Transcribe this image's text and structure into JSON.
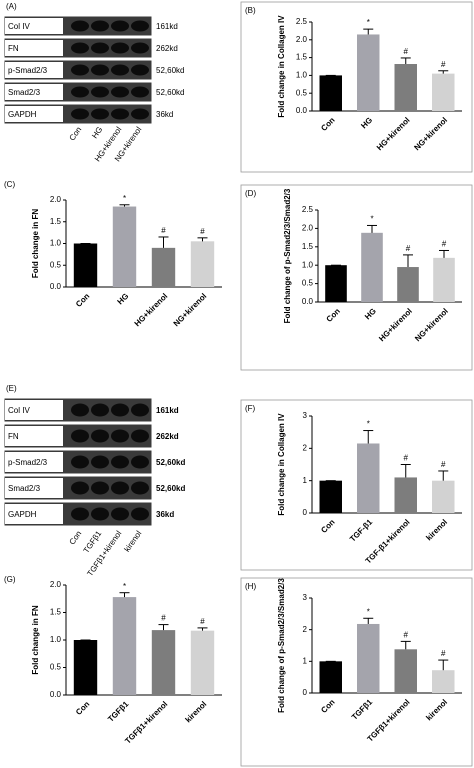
{
  "blots": [
    {
      "panel": "(A)",
      "rows": [
        {
          "protein": "Col IV",
          "size": "161kd"
        },
        {
          "protein": "FN",
          "size": "262kd"
        },
        {
          "protein": "p-Smad2/3",
          "size": "52,60kd"
        },
        {
          "protein": "Smad2/3",
          "size": "52,60kd"
        },
        {
          "protein": "GAPDH",
          "size": "36kd"
        }
      ],
      "lanes": [
        "Con",
        "HG",
        "HG+kirenol",
        "NG+kirenol"
      ]
    },
    {
      "panel": "(E)",
      "rows": [
        {
          "protein": "Col IV",
          "size": "161kd"
        },
        {
          "protein": "FN",
          "size": "262kd"
        },
        {
          "protein": "p-Smad2/3",
          "size": "52,60kd"
        },
        {
          "protein": "Smad2/3",
          "size": "52,60kd"
        },
        {
          "protein": "GAPDH",
          "size": "36kd"
        }
      ],
      "lanes": [
        "Con",
        "TGFβ1",
        "TGFβ1+kirenol",
        "kirenol"
      ]
    }
  ],
  "chart_data": [
    {
      "type": "bar",
      "panel": "(B)",
      "ylabel": "Fold change in Collagen IV",
      "categories": [
        "Con",
        "HG",
        "HG+kirenol",
        "NG+kirenol"
      ],
      "values": [
        1.0,
        2.15,
        1.32,
        1.05
      ],
      "errors": [
        0,
        0.15,
        0.17,
        0.08
      ],
      "annotations": [
        null,
        "*",
        "#",
        "#"
      ],
      "colors": [
        "#000000",
        "#a4a4ac",
        "#7d7d7d",
        "#d2d2d2"
      ],
      "ylim": [
        0,
        2.5
      ],
      "yticks": [
        {
          "value": 0,
          "label": "0.0"
        },
        0.5,
        {
          "value": 1,
          "label": "1.0"
        },
        1.5,
        {
          "value": 2,
          "label": "2.0"
        },
        2.5
      ]
    },
    {
      "type": "bar",
      "panel": "(C)",
      "ylabel": "Fold change in FN",
      "categories": [
        "Con",
        "HG",
        "HG+kirenol",
        "NG+kirenol"
      ],
      "values": [
        1.0,
        1.85,
        0.9,
        1.05
      ],
      "errors": [
        0,
        0.04,
        0.25,
        0.08
      ],
      "annotations": [
        null,
        "*",
        "#",
        "#"
      ],
      "colors": [
        "#000000",
        "#a4a4ac",
        "#7d7d7d",
        "#d2d2d2"
      ],
      "ylim": [
        0,
        2
      ],
      "yticks": [
        {
          "value": 0,
          "label": "0.0"
        },
        0.5,
        {
          "value": 1,
          "label": "1.0"
        },
        1.5,
        {
          "value": 2,
          "label": "2.0"
        }
      ]
    },
    {
      "type": "bar",
      "panel": "(D)",
      "ylabel": "Fold change of p-Smad2/3/Smad2/3",
      "categories": [
        "Con",
        "HG",
        "HG+kirenol",
        "NG+kirenol"
      ],
      "values": [
        1.0,
        1.88,
        0.95,
        1.2
      ],
      "errors": [
        0,
        0.2,
        0.33,
        0.2
      ],
      "annotations": [
        null,
        "*",
        "#",
        "#"
      ],
      "colors": [
        "#000000",
        "#a4a4ac",
        "#7d7d7d",
        "#d2d2d2"
      ],
      "ylim": [
        0,
        2.5
      ],
      "yticks": [
        {
          "value": 0,
          "label": "0.0"
        },
        0.5,
        {
          "value": 1,
          "label": "1.0"
        },
        1.5,
        {
          "value": 2,
          "label": "2.0"
        },
        2.5
      ]
    },
    {
      "type": "bar",
      "panel": "(F)",
      "ylabel": "Fold change in Collagen IV",
      "categories": [
        "Con",
        "TGF-β1",
        "TGF-β1+kirenol",
        "kirenol"
      ],
      "values": [
        1.0,
        2.15,
        1.1,
        1.0
      ],
      "errors": [
        0,
        0.4,
        0.4,
        0.3
      ],
      "annotations": [
        null,
        "*",
        "#",
        "#"
      ],
      "colors": [
        "#000000",
        "#a4a4ac",
        "#7d7d7d",
        "#d2d2d2"
      ],
      "ylim": [
        0,
        3
      ],
      "yticks": [
        0,
        1,
        2,
        3
      ]
    },
    {
      "type": "bar",
      "panel": "(G)",
      "ylabel": "Fold change in FN",
      "categories": [
        "Con",
        "TGFβ1",
        "TGFβ1+kirenol",
        "kirenol"
      ],
      "values": [
        1.0,
        1.78,
        1.18,
        1.17
      ],
      "errors": [
        0,
        0.08,
        0.1,
        0.05
      ],
      "annotations": [
        null,
        "*",
        "#",
        "#"
      ],
      "colors": [
        "#000000",
        "#a4a4ac",
        "#7d7d7d",
        "#d2d2d2"
      ],
      "ylim": [
        0,
        2
      ],
      "yticks": [
        {
          "value": 0,
          "label": "0.0"
        },
        0.5,
        {
          "value": 1,
          "label": "1.0"
        },
        1.5,
        {
          "value": 2,
          "label": "2.0"
        }
      ]
    },
    {
      "type": "bar",
      "panel": "(H)",
      "ylabel": "Fold change of p-Smad2/3/Smad2/3",
      "categories": [
        "Con",
        "TGFβ1",
        "TGFβ1+kirenol",
        "kirenol"
      ],
      "values": [
        1.0,
        2.18,
        1.38,
        0.72
      ],
      "errors": [
        0,
        0.18,
        0.25,
        0.32
      ],
      "annotations": [
        null,
        "*",
        "#",
        "#"
      ],
      "colors": [
        "#000000",
        "#a4a4ac",
        "#7d7d7d",
        "#d2d2d2"
      ],
      "ylim": [
        0,
        3
      ],
      "yticks": [
        0,
        1,
        2,
        3
      ]
    }
  ]
}
